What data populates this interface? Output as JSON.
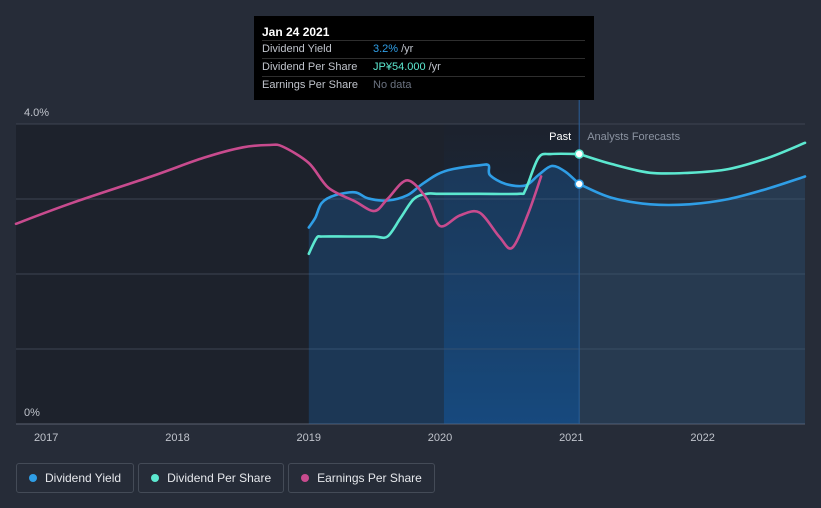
{
  "colors": {
    "background": "#262c38",
    "dividend_yield": "#2f9ee6",
    "dividend_per_share": "#5ce8d0",
    "earnings_per_share": "#c84b8e",
    "grid": "#3d4452",
    "axis_text": "#c0c4cc"
  },
  "tooltip": {
    "date": "Jan 24 2021",
    "rows": [
      {
        "label": "Dividend Yield",
        "value": "3.2%",
        "unit": "/yr"
      },
      {
        "label": "Dividend Per Share",
        "value": "JP¥54.000",
        "unit": "/yr"
      },
      {
        "label": "Earnings Per Share",
        "value": "No data",
        "unit": ""
      }
    ]
  },
  "legend": [
    {
      "label": "Dividend Yield",
      "color": "#2f9ee6"
    },
    {
      "label": "Dividend Per Share",
      "color": "#5ce8d0"
    },
    {
      "label": "Earnings Per Share",
      "color": "#c84b8e"
    }
  ],
  "chart_data": {
    "type": "line",
    "title": "",
    "xlabel": "",
    "ylabel": "",
    "ylim": [
      0,
      4.0
    ],
    "xlim": [
      2016.77,
      2022.78
    ],
    "y_tick_labels": [
      "0%",
      "4.0%"
    ],
    "x_tick_labels": [
      "2017",
      "2018",
      "2019",
      "2020",
      "2021",
      "2022"
    ],
    "x_ticks": [
      2017,
      2018,
      2019,
      2020,
      2021,
      2022
    ],
    "divider_x": 2021.06,
    "divider_labels": {
      "past": "Past",
      "future": "Analysts Forecasts"
    },
    "highlight_band": [
      2020.03,
      2021.06
    ],
    "series": [
      {
        "name": "Dividend Yield",
        "unit": "%",
        "area": true,
        "x": [
          2019.0,
          2019.05,
          2019.1,
          2019.2,
          2019.35,
          2019.45,
          2019.6,
          2019.75,
          2019.85,
          2019.98,
          2020.1,
          2020.3,
          2020.37,
          2020.38,
          2020.5,
          2020.65,
          2020.75,
          2020.85,
          2020.95,
          2021.06
        ],
        "y": [
          2.62,
          2.75,
          2.95,
          3.05,
          3.09,
          3.01,
          2.98,
          3.05,
          3.18,
          3.33,
          3.4,
          3.45,
          3.45,
          3.32,
          3.2,
          3.18,
          3.32,
          3.44,
          3.37,
          3.2
        ]
      },
      {
        "name": "Dividend Yield (forecast)",
        "unit": "%",
        "x": [
          2021.06,
          2021.3,
          2021.6,
          2021.9,
          2022.2,
          2022.5,
          2022.78
        ],
        "y": [
          3.2,
          3.02,
          2.93,
          2.93,
          3.0,
          3.14,
          3.3
        ]
      },
      {
        "name": "Dividend Per Share",
        "unit": "JP¥",
        "x": [
          2019.0,
          2019.06,
          2019.1,
          2019.3,
          2019.5,
          2019.6,
          2019.7,
          2019.8,
          2019.9,
          2020.0,
          2020.3,
          2020.6,
          2020.65,
          2020.75,
          2020.85,
          2021.06
        ],
        "y": [
          2.27,
          2.48,
          2.5,
          2.5,
          2.5,
          2.5,
          2.75,
          3.0,
          3.07,
          3.07,
          3.07,
          3.07,
          3.12,
          3.55,
          3.6,
          3.6
        ]
      },
      {
        "name": "Dividend Per Share (forecast)",
        "unit": "JP¥",
        "x": [
          2021.06,
          2021.3,
          2021.6,
          2021.9,
          2022.2,
          2022.5,
          2022.78
        ],
        "y": [
          3.6,
          3.47,
          3.35,
          3.35,
          3.4,
          3.55,
          3.75
        ]
      },
      {
        "name": "Earnings Per Share",
        "unit": "JP¥",
        "x": [
          2016.77,
          2017.2,
          2017.8,
          2018.2,
          2018.5,
          2018.7,
          2018.8,
          2019.0,
          2019.15,
          2019.35,
          2019.5,
          2019.6,
          2019.75,
          2019.9,
          2020.0,
          2020.15,
          2020.3,
          2020.45,
          2020.55,
          2020.67,
          2020.77
        ],
        "y": [
          2.67,
          2.95,
          3.3,
          3.55,
          3.69,
          3.72,
          3.7,
          3.48,
          3.15,
          2.97,
          2.84,
          3.0,
          3.25,
          3.0,
          2.64,
          2.78,
          2.82,
          2.5,
          2.35,
          2.8,
          3.3
        ]
      }
    ]
  }
}
